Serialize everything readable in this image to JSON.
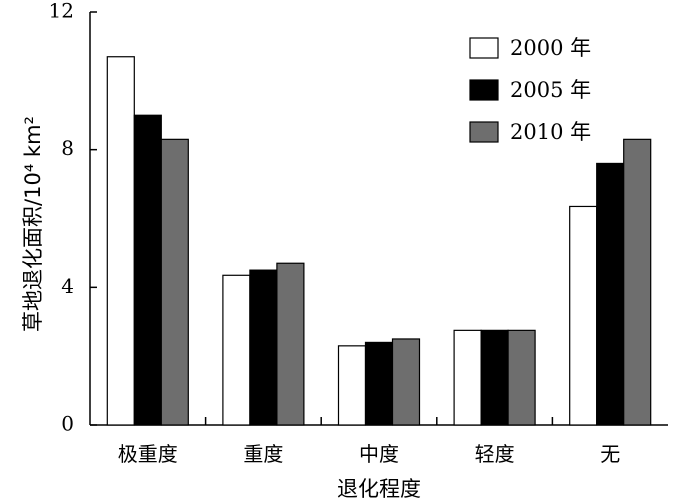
{
  "chart_data": {
    "type": "bar",
    "categories": [
      "极重度",
      "重度",
      "中度",
      "轻度",
      "无"
    ],
    "series": [
      {
        "name": "2000 年",
        "values": [
          10.7,
          4.35,
          2.3,
          2.75,
          6.35
        ],
        "color": "#ffffff"
      },
      {
        "name": "2005 年",
        "values": [
          9.0,
          4.5,
          2.4,
          2.75,
          7.6
        ],
        "color": "#000000"
      },
      {
        "name": "2010 年",
        "values": [
          8.3,
          4.7,
          2.5,
          2.75,
          8.3
        ],
        "color": "#6e6e6e"
      }
    ],
    "title": "",
    "xlabel": "退化程度",
    "ylabel": "草地退化面积/10⁴ km²",
    "ylim": [
      0,
      12
    ],
    "yticks": [
      0,
      4,
      8,
      12
    ],
    "legend_position": "top-right",
    "grid": false
  }
}
